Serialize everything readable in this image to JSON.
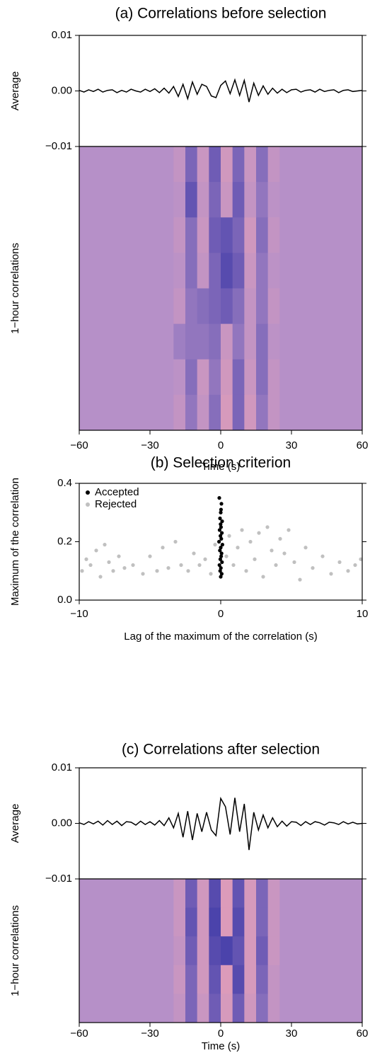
{
  "chart_data": [
    {
      "type": "line",
      "title": "(a) Correlations before selection",
      "y_label": "Average",
      "color": "#000000",
      "x": [
        -60,
        -58,
        -56,
        -54,
        -52,
        -50,
        -48,
        -46,
        -44,
        -42,
        -40,
        -38,
        -36,
        -34,
        -32,
        -30,
        -28,
        -26,
        -24,
        -22,
        -20,
        -18,
        -16,
        -14,
        -12,
        -10,
        -8,
        -6,
        -4,
        -2,
        0,
        2,
        4,
        6,
        8,
        10,
        12,
        14,
        16,
        18,
        20,
        22,
        24,
        26,
        28,
        30,
        32,
        34,
        36,
        38,
        40,
        42,
        44,
        46,
        48,
        50,
        52,
        54,
        56,
        58,
        60
      ],
      "values": [
        0.0001,
        -0.0002,
        0.0002,
        -0.0001,
        0.0003,
        -0.0002,
        0.0001,
        0.0002,
        -0.0003,
        0.0001,
        -0.0002,
        0.0003,
        0.0,
        -0.0002,
        0.0003,
        -0.0001,
        0.0004,
        -0.0003,
        0.0005,
        -0.0004,
        0.0008,
        -0.001,
        0.0012,
        -0.0014,
        0.0016,
        -0.0006,
        0.0012,
        0.0008,
        -0.0009,
        -0.0012,
        0.001,
        0.0018,
        -0.0005,
        0.002,
        -0.0008,
        0.0019,
        -0.002,
        0.0014,
        -0.0008,
        0.0009,
        -0.0006,
        0.0005,
        -0.0004,
        0.0003,
        -0.0003,
        0.0002,
        0.0003,
        -0.0002,
        0.0001,
        0.0002,
        -0.0002,
        0.0003,
        -0.0001,
        0.0001,
        0.0002,
        -0.0003,
        0.0001,
        0.0002,
        -0.0001,
        0.0,
        0.0001
      ],
      "xlim": [
        -60,
        60
      ],
      "ylim": [
        -0.01,
        0.01
      ],
      "yticks": [
        0.01,
        {
          "value": 0,
          "label": "0.00"
        },
        {
          "value": -0.01,
          "label": "−0.01"
        }
      ]
    },
    {
      "type": "heatmap",
      "y_label": "1−hour correlations",
      "x_label": "Time (s)",
      "xlim": [
        -60,
        60
      ],
      "xticks": [
        {
          "value": -60,
          "label": "−60"
        },
        {
          "value": -30,
          "label": "−30"
        },
        0,
        30,
        60
      ],
      "zlim": [
        -1,
        1
      ],
      "colormap": [
        "#3f3aa8",
        "#b690c8",
        "#f6a3b0"
      ],
      "z": [
        [
          0,
          0,
          0,
          0,
          0,
          0,
          0,
          0,
          0.2,
          -0.5,
          0.3,
          -0.6,
          0.4,
          -0.5,
          0.3,
          -0.4,
          0.2,
          0,
          0,
          0,
          0,
          0,
          0,
          0
        ],
        [
          0,
          0,
          0,
          0,
          0,
          0,
          0,
          0,
          0.1,
          -0.7,
          0.2,
          -0.5,
          0.3,
          -0.6,
          0.2,
          -0.3,
          0.1,
          0,
          0,
          0,
          0,
          0,
          0,
          0
        ],
        [
          0,
          0,
          0,
          0,
          0,
          0,
          0,
          0,
          0.2,
          -0.4,
          0.3,
          -0.6,
          -0.7,
          -0.5,
          0.4,
          -0.4,
          0.2,
          0,
          0,
          0,
          0,
          0,
          0,
          0
        ],
        [
          0,
          0,
          0,
          0,
          0,
          0,
          0,
          0,
          0.1,
          -0.4,
          0.2,
          -0.5,
          -0.8,
          -0.6,
          0.3,
          -0.3,
          0.1,
          0,
          0,
          0,
          0,
          0,
          0,
          0
        ],
        [
          0,
          0,
          0,
          0,
          0,
          0,
          0,
          0,
          0.2,
          -0.3,
          -0.4,
          -0.5,
          -0.6,
          -0.4,
          0.2,
          -0.3,
          0.2,
          0,
          0,
          0,
          0,
          0,
          0,
          0
        ],
        [
          0,
          0,
          0,
          0,
          0,
          0,
          0,
          0,
          -0.2,
          -0.3,
          -0.3,
          -0.4,
          0.3,
          -0.3,
          0.2,
          -0.4,
          0.1,
          0,
          0,
          0,
          0,
          0,
          0,
          0
        ],
        [
          0,
          0,
          0,
          0,
          0,
          0,
          0,
          0,
          0.1,
          -0.4,
          0.3,
          -0.3,
          0.4,
          -0.5,
          0.3,
          -0.4,
          0.2,
          0,
          0,
          0,
          0,
          0,
          0,
          0
        ],
        [
          0,
          0,
          0,
          0,
          0,
          0,
          0,
          0,
          0.2,
          -0.3,
          0.2,
          -0.4,
          0.5,
          -0.5,
          0.4,
          -0.3,
          0.2,
          0,
          0,
          0,
          0,
          0,
          0,
          0
        ]
      ]
    },
    {
      "type": "scatter",
      "title": "(b) Selection criterion",
      "x_label": "Lag of the maximum of the correlation (s)",
      "y_label": "Maximum of the correlation",
      "xlim": [
        -10,
        10
      ],
      "xticks": [
        {
          "value": -10,
          "label": "−10"
        },
        0,
        10
      ],
      "ylim": [
        0,
        0.4
      ],
      "yticks": [
        {
          "value": 0,
          "label": "0.0"
        },
        {
          "value": 0.2,
          "label": "0.2"
        },
        {
          "value": 0.4,
          "label": "0.4"
        }
      ],
      "legend": "upper left",
      "series": [
        {
          "name": "Accepted",
          "color": "#000000",
          "x": [
            -0.1,
            0.05,
            0.0,
            -0.05,
            0.1,
            0.02,
            -0.08,
            0.08,
            -0.02,
            0.04,
            -0.12,
            0.12,
            0.0,
            -0.06,
            0.06,
            0.03,
            -0.03,
            0.09,
            -0.09,
            0.01,
            -0.04,
            0.07,
            0.0,
            -0.01,
            0.02
          ],
          "y": [
            0.35,
            0.33,
            0.3,
            0.28,
            0.27,
            0.25,
            0.24,
            0.23,
            0.22,
            0.21,
            0.2,
            0.19,
            0.18,
            0.17,
            0.16,
            0.15,
            0.14,
            0.13,
            0.12,
            0.11,
            0.1,
            0.09,
            0.08,
            0.26,
            0.31
          ]
        },
        {
          "name": "Rejected",
          "color": "#c0c0c0",
          "x": [
            -9.8,
            -9.5,
            -9.2,
            -8.8,
            -8.5,
            -8.2,
            -7.9,
            -7.6,
            -7.2,
            -6.8,
            -6.2,
            -5.5,
            -5.0,
            -4.5,
            -4.1,
            -3.7,
            -3.2,
            -2.8,
            -2.3,
            -1.9,
            -1.5,
            -1.1,
            -0.7,
            -0.4,
            0.4,
            0.6,
            0.9,
            1.2,
            1.5,
            1.8,
            2.1,
            2.4,
            2.7,
            3.0,
            3.3,
            3.6,
            3.9,
            4.2,
            4.5,
            4.8,
            5.2,
            5.6,
            6.0,
            6.5,
            7.2,
            7.8,
            8.4,
            9.0,
            9.5,
            9.9
          ],
          "y": [
            0.1,
            0.14,
            0.12,
            0.17,
            0.08,
            0.19,
            0.13,
            0.1,
            0.15,
            0.11,
            0.12,
            0.09,
            0.15,
            0.1,
            0.18,
            0.11,
            0.2,
            0.12,
            0.1,
            0.16,
            0.12,
            0.14,
            0.09,
            0.19,
            0.15,
            0.22,
            0.12,
            0.18,
            0.24,
            0.1,
            0.2,
            0.14,
            0.23,
            0.08,
            0.25,
            0.17,
            0.12,
            0.21,
            0.16,
            0.24,
            0.13,
            0.07,
            0.18,
            0.11,
            0.15,
            0.09,
            0.13,
            0.1,
            0.12,
            0.14
          ]
        }
      ]
    },
    {
      "type": "line",
      "title": "(c) Correlations after selection",
      "y_label": "Average",
      "color": "#000000",
      "x": [
        -60,
        -58,
        -56,
        -54,
        -52,
        -50,
        -48,
        -46,
        -44,
        -42,
        -40,
        -38,
        -36,
        -34,
        -32,
        -30,
        -28,
        -26,
        -24,
        -22,
        -20,
        -18,
        -16,
        -14,
        -12,
        -10,
        -8,
        -6,
        -4,
        -2,
        0,
        2,
        4,
        6,
        8,
        10,
        12,
        14,
        16,
        18,
        20,
        22,
        24,
        26,
        28,
        30,
        32,
        34,
        36,
        38,
        40,
        42,
        44,
        46,
        48,
        50,
        52,
        54,
        56,
        58,
        60
      ],
      "values": [
        0.0001,
        -0.0002,
        0.0003,
        -0.0001,
        0.0004,
        -0.0003,
        0.0005,
        -0.0002,
        0.0004,
        -0.0004,
        0.0003,
        0.0002,
        -0.0003,
        0.0004,
        -0.0002,
        0.0003,
        -0.0003,
        0.0005,
        -0.0004,
        0.001,
        -0.0008,
        0.0018,
        -0.0025,
        0.0022,
        -0.003,
        0.0018,
        -0.0015,
        0.002,
        -0.0012,
        -0.0022,
        0.0045,
        0.003,
        -0.002,
        0.0046,
        -0.0015,
        0.0035,
        -0.0048,
        0.002,
        -0.0012,
        0.0015,
        -0.0008,
        0.001,
        -0.0006,
        0.0004,
        -0.0005,
        0.0003,
        0.0002,
        -0.0004,
        0.0003,
        -0.0002,
        0.0003,
        0.0001,
        -0.0003,
        0.0002,
        0.0001,
        -0.0002,
        0.0003,
        -0.0001,
        0.0002,
        -0.0001,
        0.0
      ],
      "xlim": [
        -60,
        60
      ],
      "ylim": [
        -0.01,
        0.01
      ],
      "yticks": [
        0.01,
        {
          "value": 0,
          "label": "0.00"
        },
        {
          "value": -0.01,
          "label": "−0.01"
        }
      ]
    },
    {
      "type": "heatmap",
      "y_label": "1−hour correlations",
      "x_label": "Time (s)",
      "xlim": [
        -60,
        60
      ],
      "xticks": [
        {
          "value": -60,
          "label": "−60"
        },
        {
          "value": -30,
          "label": "−30"
        },
        0,
        30,
        60
      ],
      "zlim": [
        -1,
        1
      ],
      "colormap": [
        "#3f3aa8",
        "#b690c8",
        "#f6a3b0"
      ],
      "z": [
        [
          0,
          0,
          0,
          0,
          0,
          0,
          0,
          0,
          0.3,
          -0.6,
          0.4,
          -0.8,
          0.6,
          -0.7,
          0.5,
          -0.5,
          0.3,
          0,
          0,
          0,
          0,
          0,
          0,
          0
        ],
        [
          0,
          0,
          0,
          0,
          0,
          0,
          0,
          0,
          0.3,
          -0.7,
          0.4,
          -0.9,
          0.6,
          -0.8,
          0.5,
          -0.5,
          0.3,
          0,
          0,
          0,
          0,
          0,
          0,
          0
        ],
        [
          0,
          0,
          0,
          0,
          0,
          0,
          0,
          0,
          0.2,
          -0.6,
          0.4,
          -0.8,
          -0.9,
          -0.7,
          0.5,
          -0.6,
          0.3,
          0,
          0,
          0,
          0,
          0,
          0,
          0
        ],
        [
          0,
          0,
          0,
          0,
          0,
          0,
          0,
          0,
          0.3,
          -0.5,
          0.4,
          -0.7,
          0.6,
          -0.8,
          0.5,
          -0.5,
          0.2,
          0,
          0,
          0,
          0,
          0,
          0,
          0
        ],
        [
          0,
          0,
          0,
          0,
          0,
          0,
          0,
          0,
          0.2,
          -0.5,
          0.3,
          -0.6,
          0.5,
          -0.6,
          0.4,
          -0.4,
          0.2,
          0,
          0,
          0,
          0,
          0,
          0,
          0
        ]
      ]
    }
  ]
}
